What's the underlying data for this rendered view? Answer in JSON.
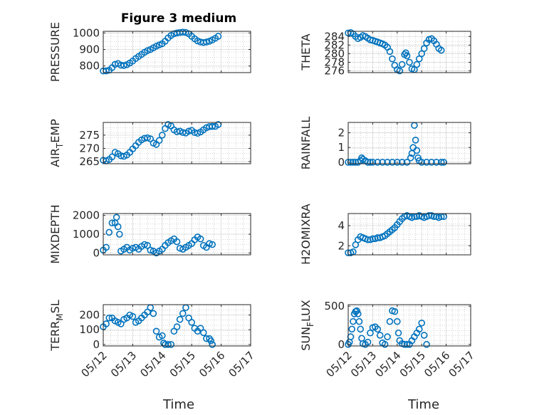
{
  "figure": {
    "title": "Figure 3 medium",
    "xlabel": "Time",
    "marker_color": "#0072BD",
    "axis_color": "#262626",
    "grid_color": "#b0b0b0"
  },
  "chart_data": [
    {
      "type": "scatter",
      "ylabel_parts": [
        "PRESSURE"
      ],
      "xlim": [
        0,
        5
      ],
      "ylim": [
        760,
        1010
      ],
      "yticks": [
        800,
        900,
        1000
      ],
      "ytick_labels": [
        "800",
        "900",
        "1000"
      ],
      "points": [
        [
          0.0,
          770
        ],
        [
          0.1,
          770
        ],
        [
          0.2,
          775
        ],
        [
          0.3,
          790
        ],
        [
          0.4,
          810
        ],
        [
          0.5,
          815
        ],
        [
          0.6,
          805
        ],
        [
          0.7,
          803
        ],
        [
          0.8,
          808
        ],
        [
          0.9,
          818
        ],
        [
          1.0,
          830
        ],
        [
          1.1,
          845
        ],
        [
          1.2,
          858
        ],
        [
          1.3,
          870
        ],
        [
          1.4,
          883
        ],
        [
          1.5,
          893
        ],
        [
          1.6,
          900
        ],
        [
          1.7,
          910
        ],
        [
          1.8,
          920
        ],
        [
          1.9,
          928
        ],
        [
          2.0,
          935
        ],
        [
          2.1,
          950
        ],
        [
          2.2,
          970
        ],
        [
          2.3,
          985
        ],
        [
          2.4,
          995
        ],
        [
          2.5,
          1000
        ],
        [
          2.6,
          1003
        ],
        [
          2.7,
          1005
        ],
        [
          2.8,
          1003
        ],
        [
          2.9,
          995
        ],
        [
          3.0,
          980
        ],
        [
          3.1,
          965
        ],
        [
          3.2,
          952
        ],
        [
          3.3,
          945
        ],
        [
          3.4,
          942
        ],
        [
          3.5,
          945
        ],
        [
          3.6,
          950
        ],
        [
          3.7,
          958
        ],
        [
          3.8,
          968
        ],
        [
          3.9,
          980
        ]
      ]
    },
    {
      "type": "scatter",
      "ylabel_parts": [
        "THETA"
      ],
      "xlim": [
        0,
        5
      ],
      "ylim": [
        275.6,
        285.2
      ],
      "yticks": [
        276,
        278,
        280,
        282,
        284
      ],
      "ytick_labels": [
        "276",
        "278",
        "280",
        "282",
        "284"
      ],
      "points": [
        [
          0.0,
          284.8
        ],
        [
          0.1,
          284.9
        ],
        [
          0.2,
          284.6
        ],
        [
          0.3,
          284.0
        ],
        [
          0.4,
          283.5
        ],
        [
          0.5,
          283.8
        ],
        [
          0.6,
          284.2
        ],
        [
          0.7,
          284.0
        ],
        [
          0.8,
          283.6
        ],
        [
          0.9,
          283.2
        ],
        [
          1.0,
          283.1
        ],
        [
          1.1,
          282.9
        ],
        [
          1.2,
          282.7
        ],
        [
          1.3,
          282.5
        ],
        [
          1.4,
          282.3
        ],
        [
          1.5,
          282.0
        ],
        [
          1.6,
          281.5
        ],
        [
          1.7,
          280.5
        ],
        [
          1.8,
          278.8
        ],
        [
          1.9,
          277.3
        ],
        [
          2.0,
          276.3
        ],
        [
          2.1,
          276.0
        ],
        [
          2.2,
          277.5
        ],
        [
          2.3,
          279.8
        ],
        [
          2.35,
          280.2
        ],
        [
          2.4,
          279.5
        ],
        [
          2.5,
          278.0
        ],
        [
          2.6,
          276.5
        ],
        [
          2.7,
          276.3
        ],
        [
          2.8,
          277.5
        ],
        [
          2.9,
          278.8
        ],
        [
          3.0,
          280.0
        ],
        [
          3.1,
          281.2
        ],
        [
          3.2,
          282.5
        ],
        [
          3.3,
          283.3
        ],
        [
          3.4,
          283.5
        ],
        [
          3.5,
          283.0
        ],
        [
          3.6,
          282.2
        ],
        [
          3.7,
          281.2
        ],
        [
          3.8,
          280.8
        ]
      ]
    },
    {
      "type": "scatter",
      "ylabel_parts": [
        "AIR",
        "T",
        "EMP"
      ],
      "xlim": [
        0,
        5
      ],
      "ylim": [
        264.2,
        279.8
      ],
      "yticks": [
        265,
        270,
        275
      ],
      "ytick_labels": [
        "265",
        "270",
        "275"
      ],
      "points": [
        [
          0.0,
          265.5
        ],
        [
          0.1,
          265.3
        ],
        [
          0.2,
          265.8
        ],
        [
          0.3,
          266.8
        ],
        [
          0.4,
          268.5
        ],
        [
          0.5,
          268.0
        ],
        [
          0.6,
          267.2
        ],
        [
          0.7,
          267.0
        ],
        [
          0.8,
          267.5
        ],
        [
          0.9,
          268.5
        ],
        [
          1.0,
          269.8
        ],
        [
          1.1,
          271.0
        ],
        [
          1.2,
          272.3
        ],
        [
          1.3,
          273.2
        ],
        [
          1.4,
          273.8
        ],
        [
          1.5,
          274.0
        ],
        [
          1.6,
          273.6
        ],
        [
          1.7,
          272.0
        ],
        [
          1.8,
          271.5
        ],
        [
          1.9,
          273.0
        ],
        [
          2.0,
          275.0
        ],
        [
          2.1,
          277.5
        ],
        [
          2.2,
          279.0
        ],
        [
          2.3,
          278.5
        ],
        [
          2.4,
          277.0
        ],
        [
          2.5,
          276.3
        ],
        [
          2.6,
          276.5
        ],
        [
          2.7,
          276.0
        ],
        [
          2.8,
          275.8
        ],
        [
          2.9,
          276.5
        ],
        [
          3.0,
          276.8
        ],
        [
          3.1,
          276.0
        ],
        [
          3.2,
          275.7
        ],
        [
          3.3,
          276.2
        ],
        [
          3.4,
          277.0
        ],
        [
          3.5,
          277.8
        ],
        [
          3.6,
          278.2
        ],
        [
          3.7,
          278.3
        ],
        [
          3.8,
          278.3
        ],
        [
          3.9,
          279.0
        ]
      ]
    },
    {
      "type": "scatter",
      "ylabel_parts": [
        "RAINFALL"
      ],
      "xlim": [
        0,
        5
      ],
      "ylim": [
        -0.1,
        2.7
      ],
      "yticks": [
        0,
        1,
        2
      ],
      "ytick_labels": [
        "0",
        "1",
        "2"
      ],
      "points": [
        [
          0.0,
          0
        ],
        [
          0.1,
          0
        ],
        [
          0.2,
          0
        ],
        [
          0.3,
          0
        ],
        [
          0.4,
          0
        ],
        [
          0.5,
          0.1
        ],
        [
          0.55,
          0.3
        ],
        [
          0.6,
          0.2
        ],
        [
          0.7,
          0.1
        ],
        [
          0.8,
          0
        ],
        [
          0.9,
          0
        ],
        [
          1.0,
          0
        ],
        [
          1.2,
          0
        ],
        [
          1.4,
          0
        ],
        [
          1.6,
          0
        ],
        [
          1.8,
          0
        ],
        [
          2.0,
          0
        ],
        [
          2.2,
          0
        ],
        [
          2.4,
          0
        ],
        [
          2.55,
          0.3
        ],
        [
          2.6,
          0.6
        ],
        [
          2.65,
          1.0
        ],
        [
          2.7,
          2.5
        ],
        [
          2.75,
          1.5
        ],
        [
          2.8,
          0.8
        ],
        [
          2.85,
          0.3
        ],
        [
          2.9,
          0.1
        ],
        [
          3.0,
          0
        ],
        [
          3.2,
          0
        ],
        [
          3.4,
          0
        ],
        [
          3.6,
          0
        ],
        [
          3.8,
          0
        ],
        [
          3.9,
          0
        ]
      ]
    },
    {
      "type": "scatter",
      "ylabel_parts": [
        "MIXDEPTH"
      ],
      "xlim": [
        0,
        5
      ],
      "ylim": [
        -100,
        2100
      ],
      "yticks": [
        0,
        1000,
        2000
      ],
      "ytick_labels": [
        "0",
        "1000",
        "2000"
      ],
      "points": [
        [
          0.0,
          150
        ],
        [
          0.1,
          300
        ],
        [
          0.2,
          1100
        ],
        [
          0.3,
          1600
        ],
        [
          0.4,
          1600
        ],
        [
          0.45,
          1900
        ],
        [
          0.5,
          1400
        ],
        [
          0.55,
          1000
        ],
        [
          0.6,
          100
        ],
        [
          0.7,
          200
        ],
        [
          0.8,
          300
        ],
        [
          0.9,
          150
        ],
        [
          1.0,
          250
        ],
        [
          1.1,
          300
        ],
        [
          1.2,
          200
        ],
        [
          1.3,
          350
        ],
        [
          1.4,
          450
        ],
        [
          1.5,
          400
        ],
        [
          1.6,
          150
        ],
        [
          1.7,
          100
        ],
        [
          1.8,
          0
        ],
        [
          1.9,
          100
        ],
        [
          2.0,
          200
        ],
        [
          2.1,
          400
        ],
        [
          2.2,
          550
        ],
        [
          2.3,
          650
        ],
        [
          2.4,
          750
        ],
        [
          2.5,
          600
        ],
        [
          2.6,
          250
        ],
        [
          2.7,
          200
        ],
        [
          2.8,
          300
        ],
        [
          2.9,
          400
        ],
        [
          3.0,
          500
        ],
        [
          3.1,
          700
        ],
        [
          3.2,
          850
        ],
        [
          3.3,
          750
        ],
        [
          3.4,
          400
        ],
        [
          3.5,
          300
        ],
        [
          3.6,
          500
        ],
        [
          3.7,
          450
        ]
      ]
    },
    {
      "type": "scatter",
      "ylabel_parts": [
        "H2OMIXRA"
      ],
      "xlim": [
        0,
        5
      ],
      "ylim": [
        1.1,
        5.2
      ],
      "yticks": [
        2,
        4
      ],
      "ytick_labels": [
        "2",
        "4"
      ],
      "points": [
        [
          0.0,
          1.3
        ],
        [
          0.1,
          1.3
        ],
        [
          0.2,
          1.4
        ],
        [
          0.3,
          2.1
        ],
        [
          0.4,
          2.6
        ],
        [
          0.5,
          2.9
        ],
        [
          0.6,
          2.8
        ],
        [
          0.7,
          2.7
        ],
        [
          0.8,
          2.6
        ],
        [
          0.9,
          2.6
        ],
        [
          1.0,
          2.7
        ],
        [
          1.1,
          2.7
        ],
        [
          1.2,
          2.8
        ],
        [
          1.3,
          2.8
        ],
        [
          1.4,
          2.9
        ],
        [
          1.5,
          3.0
        ],
        [
          1.6,
          3.2
        ],
        [
          1.7,
          3.4
        ],
        [
          1.8,
          3.6
        ],
        [
          1.9,
          3.8
        ],
        [
          2.0,
          4.1
        ],
        [
          2.1,
          4.4
        ],
        [
          2.2,
          4.7
        ],
        [
          2.3,
          4.9
        ],
        [
          2.4,
          5.0
        ],
        [
          2.5,
          4.9
        ],
        [
          2.6,
          4.8
        ],
        [
          2.7,
          4.9
        ],
        [
          2.8,
          4.9
        ],
        [
          2.9,
          5.0
        ],
        [
          3.0,
          4.9
        ],
        [
          3.1,
          4.8
        ],
        [
          3.2,
          4.9
        ],
        [
          3.3,
          5.0
        ],
        [
          3.4,
          5.0
        ],
        [
          3.5,
          4.9
        ],
        [
          3.6,
          4.9
        ],
        [
          3.7,
          4.8
        ],
        [
          3.8,
          4.9
        ],
        [
          3.9,
          4.9
        ]
      ]
    },
    {
      "type": "scatter",
      "ylabel_parts": [
        "TERR",
        "M",
        "SL"
      ],
      "xlim": [
        0,
        5
      ],
      "ylim": [
        -10,
        270
      ],
      "yticks": [
        0,
        100,
        200
      ],
      "ytick_labels": [
        "0",
        "100",
        "200"
      ],
      "points": [
        [
          0.0,
          120
        ],
        [
          0.1,
          140
        ],
        [
          0.2,
          180
        ],
        [
          0.3,
          180
        ],
        [
          0.4,
          160
        ],
        [
          0.5,
          150
        ],
        [
          0.6,
          140
        ],
        [
          0.7,
          170
        ],
        [
          0.8,
          180
        ],
        [
          0.9,
          200
        ],
        [
          1.0,
          190
        ],
        [
          1.1,
          150
        ],
        [
          1.2,
          160
        ],
        [
          1.3,
          180
        ],
        [
          1.4,
          200
        ],
        [
          1.5,
          220
        ],
        [
          1.6,
          250
        ],
        [
          1.7,
          210
        ],
        [
          1.8,
          90
        ],
        [
          1.9,
          50
        ],
        [
          2.0,
          60
        ],
        [
          2.05,
          10
        ],
        [
          2.1,
          0
        ],
        [
          2.2,
          0
        ],
        [
          2.3,
          0
        ],
        [
          2.4,
          90
        ],
        [
          2.5,
          120
        ],
        [
          2.6,
          170
        ],
        [
          2.7,
          210
        ],
        [
          2.8,
          250
        ],
        [
          2.9,
          180
        ],
        [
          3.0,
          150
        ],
        [
          3.1,
          110
        ],
        [
          3.2,
          90
        ],
        [
          3.3,
          110
        ],
        [
          3.4,
          80
        ],
        [
          3.5,
          40
        ],
        [
          3.6,
          40
        ],
        [
          3.65,
          25
        ],
        [
          3.7,
          0
        ]
      ]
    },
    {
      "type": "scatter",
      "ylabel_parts": [
        "SUN",
        "F",
        "LUX"
      ],
      "xlim": [
        0,
        5
      ],
      "ylim": [
        -20,
        520
      ],
      "yticks": [
        0,
        500
      ],
      "ytick_labels": [
        "0",
        "500"
      ],
      "points": [
        [
          0.0,
          0
        ],
        [
          0.05,
          30
        ],
        [
          0.1,
          100
        ],
        [
          0.15,
          200
        ],
        [
          0.2,
          300
        ],
        [
          0.25,
          400
        ],
        [
          0.3,
          430
        ],
        [
          0.35,
          440
        ],
        [
          0.4,
          400
        ],
        [
          0.45,
          300
        ],
        [
          0.5,
          200
        ],
        [
          0.55,
          80
        ],
        [
          0.6,
          10
        ],
        [
          0.7,
          0
        ],
        [
          0.8,
          30
        ],
        [
          0.9,
          150
        ],
        [
          1.0,
          220
        ],
        [
          1.1,
          230
        ],
        [
          1.2,
          200
        ],
        [
          1.3,
          120
        ],
        [
          1.4,
          20
        ],
        [
          1.5,
          0
        ],
        [
          1.6,
          100
        ],
        [
          1.7,
          300
        ],
        [
          1.8,
          440
        ],
        [
          1.9,
          430
        ],
        [
          2.0,
          300
        ],
        [
          2.05,
          150
        ],
        [
          2.1,
          50
        ],
        [
          2.2,
          10
        ],
        [
          2.3,
          0
        ],
        [
          2.4,
          0
        ],
        [
          2.5,
          0
        ],
        [
          2.6,
          50
        ],
        [
          2.7,
          100
        ],
        [
          2.8,
          150
        ],
        [
          2.9,
          200
        ],
        [
          3.0,
          280
        ],
        [
          3.1,
          120
        ],
        [
          3.2,
          0
        ]
      ]
    }
  ],
  "x_axis": {
    "ticks": [
      0,
      1,
      2,
      3,
      4,
      5
    ],
    "tick_labels": [
      "05/12",
      "05/13",
      "05/14",
      "05/15",
      "05/16",
      "05/17"
    ]
  }
}
